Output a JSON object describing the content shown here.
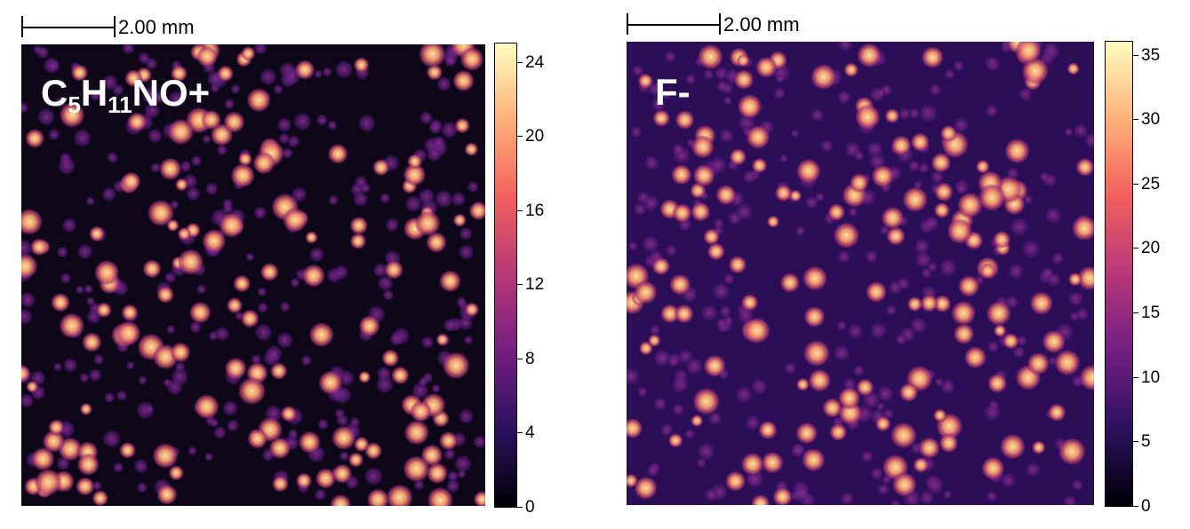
{
  "panels": [
    {
      "id": "left",
      "scalebar": {
        "label": "2.00 mm"
      },
      "ion_label": {
        "parts": [
          {
            "text": "C",
            "sub": false
          },
          {
            "text": "5",
            "sub": true
          },
          {
            "text": "H",
            "sub": false
          },
          {
            "text": "11",
            "sub": true
          },
          {
            "text": "NO+",
            "sub": false
          }
        ]
      },
      "colorbar": {
        "min": 0,
        "max": 25,
        "ticks": [
          "0",
          "4",
          "8",
          "12",
          "16",
          "20",
          "24"
        ],
        "tick_values": [
          0,
          4,
          8,
          12,
          16,
          20,
          24
        ]
      }
    },
    {
      "id": "right",
      "scalebar": {
        "label": "2.00 mm"
      },
      "ion_label": {
        "parts": [
          {
            "text": "F-",
            "sub": false
          }
        ]
      },
      "colorbar": {
        "min": 0,
        "max": 36,
        "ticks": [
          "0",
          "5",
          "10",
          "15",
          "20",
          "25",
          "30",
          "35"
        ],
        "tick_values": [
          0,
          5,
          10,
          15,
          20,
          25,
          30,
          35
        ]
      }
    }
  ],
  "colormap": {
    "name": "magma",
    "stops": [
      "#000004",
      "#2c115f",
      "#721f81",
      "#b73779",
      "#f1605d",
      "#feb078",
      "#fcfdbf"
    ]
  }
}
